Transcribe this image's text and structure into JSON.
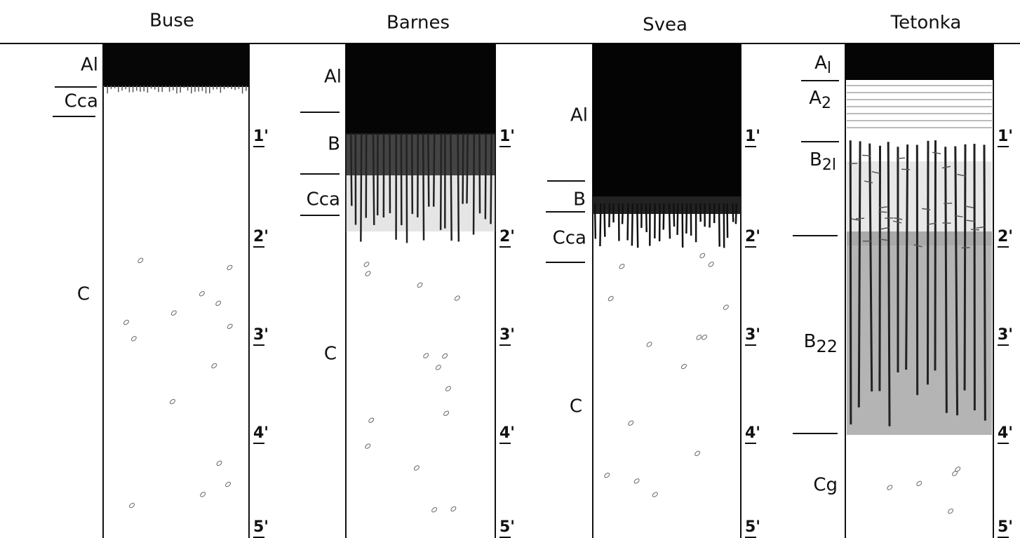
{
  "profiles": [
    {
      "name": "Buse",
      "horizons": [
        {
          "label": "Al"
        },
        {
          "label": "Cca"
        },
        {
          "label": "C"
        }
      ],
      "depths": [
        "1'",
        "2'",
        "3'",
        "4'",
        "5'"
      ]
    },
    {
      "name": "Barnes",
      "horizons": [
        {
          "label": "Al"
        },
        {
          "label": "B"
        },
        {
          "label": "Cca"
        },
        {
          "label": "C"
        }
      ],
      "depths": [
        "1'",
        "2'",
        "3'",
        "4'",
        "5'"
      ]
    },
    {
      "name": "Svea",
      "horizons": [
        {
          "label": "Al"
        },
        {
          "label": "B"
        },
        {
          "label": "Cca"
        },
        {
          "label": "C"
        }
      ],
      "depths": [
        "1'",
        "2'",
        "3'",
        "4'",
        "5'"
      ]
    },
    {
      "name": "Tetonka",
      "horizons": [
        {
          "label": "A",
          "sub": "l"
        },
        {
          "label": "A",
          "sub": "2"
        },
        {
          "label": "B",
          "sub": "2l"
        },
        {
          "label": "B",
          "sub": "22"
        },
        {
          "label": "Cg"
        }
      ],
      "depths": [
        "1'",
        "2'",
        "3'",
        "4'",
        "5'"
      ]
    }
  ]
}
